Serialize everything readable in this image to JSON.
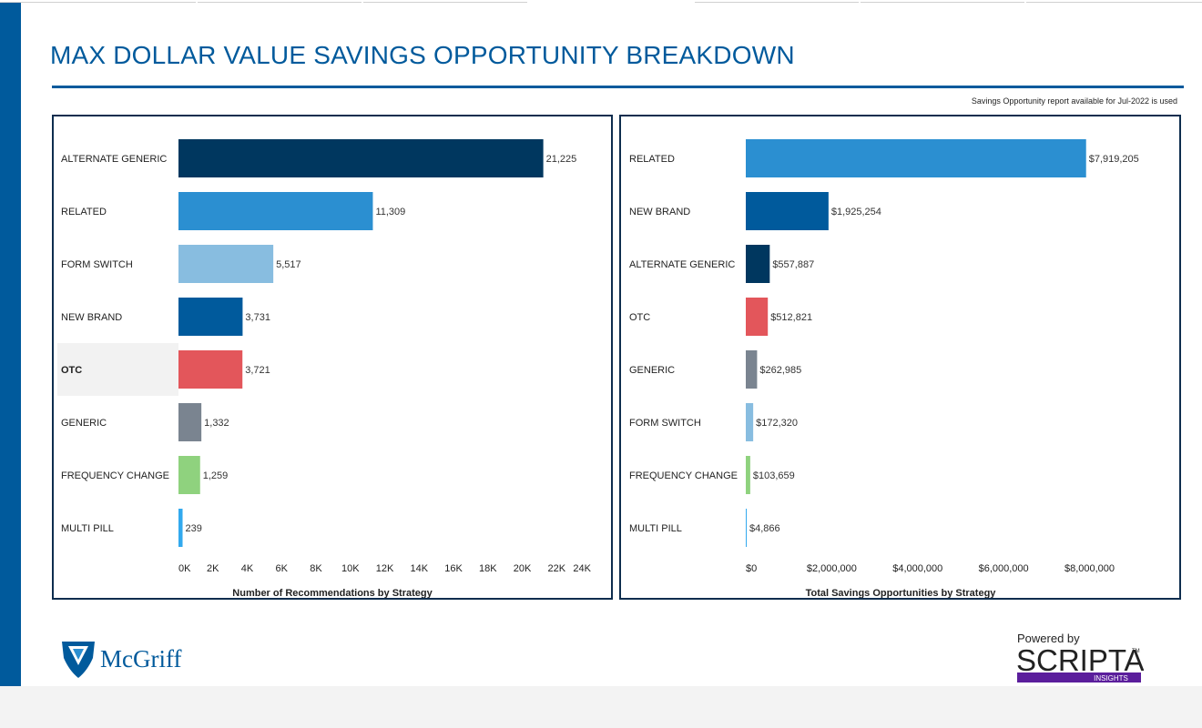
{
  "page": {
    "title": "MAX DOLLAR VALUE SAVINGS OPPORTUNITY BREAKDOWN",
    "note": "Savings Opportunity report available for Jul-2022 is used"
  },
  "colors": {
    "brand": "#005a9c",
    "panel_border": "#0e2d4e"
  },
  "logos": {
    "mcgriff": "McGriff",
    "scripta_powered": "Powered by",
    "scripta_name": "SCRIPTA",
    "scripta_tm": "TM",
    "scripta_sub": "INSIGHTS"
  },
  "chart_data": [
    {
      "type": "bar",
      "orientation": "horizontal",
      "title": "",
      "xlabel": "Number of Recommendations by Strategy",
      "ylabel": "",
      "categories": [
        "ALTERNATE GENERIC",
        "RELATED",
        "FORM SWITCH",
        "NEW BRAND",
        "OTC",
        "GENERIC",
        "FREQUENCY CHANGE",
        "MULTI PILL"
      ],
      "values": [
        21225,
        11309,
        5517,
        3731,
        3721,
        1332,
        1259,
        239
      ],
      "value_labels": [
        "21,225",
        "11,309",
        "5,517",
        "3,731",
        "3,721",
        "1,332",
        "1,259",
        "239"
      ],
      "bar_colors": [
        "#00375f",
        "#2b8fd1",
        "#88bde0",
        "#005a9c",
        "#e3565b",
        "#7a8490",
        "#8fd27e",
        "#32a9ee"
      ],
      "highlighted": "OTC",
      "xlim": [
        0,
        24000
      ],
      "xticks": [
        0,
        2000,
        4000,
        6000,
        8000,
        10000,
        12000,
        14000,
        16000,
        18000,
        20000,
        22000,
        24000
      ],
      "xtick_labels": [
        "0K",
        "2K",
        "4K",
        "6K",
        "8K",
        "10K",
        "12K",
        "14K",
        "16K",
        "18K",
        "20K",
        "22K",
        "24K"
      ],
      "grid": false,
      "legend": "none"
    },
    {
      "type": "bar",
      "orientation": "horizontal",
      "title": "",
      "xlabel": "Total Savings Opportunities by Strategy",
      "ylabel": "",
      "categories": [
        "RELATED",
        "NEW BRAND",
        "ALTERNATE GENERIC",
        "OTC",
        "GENERIC",
        "FORM SWITCH",
        "FREQUENCY CHANGE",
        "MULTI PILL"
      ],
      "values": [
        7919205,
        1925254,
        557887,
        512821,
        262985,
        172320,
        103659,
        4866
      ],
      "value_labels": [
        "$7,919,205",
        "$1,925,254",
        "$557,887",
        "$512,821",
        "$262,985",
        "$172,320",
        "$103,659",
        "$4,866"
      ],
      "bar_colors": [
        "#2b8fd1",
        "#005a9c",
        "#00375f",
        "#e3565b",
        "#7a8490",
        "#88bde0",
        "#8fd27e",
        "#32a9ee"
      ],
      "xlim": [
        0,
        8900000
      ],
      "xticks": [
        0,
        2000000,
        4000000,
        6000000,
        8000000
      ],
      "xtick_labels": [
        "$0",
        "$2,000,000",
        "$4,000,000",
        "$6,000,000",
        "$8,000,000"
      ],
      "grid": false,
      "legend": "none"
    }
  ]
}
